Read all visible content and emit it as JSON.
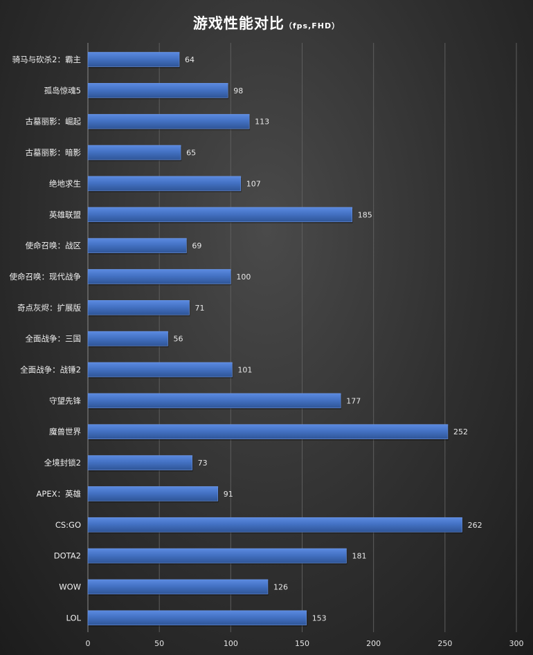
{
  "chart_data": {
    "type": "bar",
    "orientation": "horizontal",
    "title": "游戏性能对比",
    "subtitle": "（fps,FHD）",
    "categories": [
      "骑马与砍杀2：霸主",
      "孤岛惊魂5",
      "古墓丽影：崛起",
      "古墓丽影：暗影",
      "绝地求生",
      "英雄联盟",
      "使命召唤：战区",
      "使命召唤：现代战争",
      "奇点灰烬：扩展版",
      "全面战争：三国",
      "全面战争：战锤2",
      "守望先锋",
      "魔兽世界",
      "全境封锁2",
      "APEX：英雄",
      "CS:GO",
      "DOTA2",
      "WOW",
      "LOL"
    ],
    "values": [
      64,
      98,
      113,
      65,
      107,
      185,
      69,
      100,
      71,
      56,
      101,
      177,
      252,
      73,
      91,
      262,
      181,
      126,
      153
    ],
    "xlim": [
      0,
      300
    ],
    "xticks": [
      0,
      50,
      100,
      150,
      200,
      250,
      300
    ],
    "grid": true,
    "legend": "none",
    "bar_color": "#4472c4",
    "bar_color_light": "#5b8ae0",
    "bar_color_dark": "#2f5597",
    "text_color": "#ffffff"
  }
}
